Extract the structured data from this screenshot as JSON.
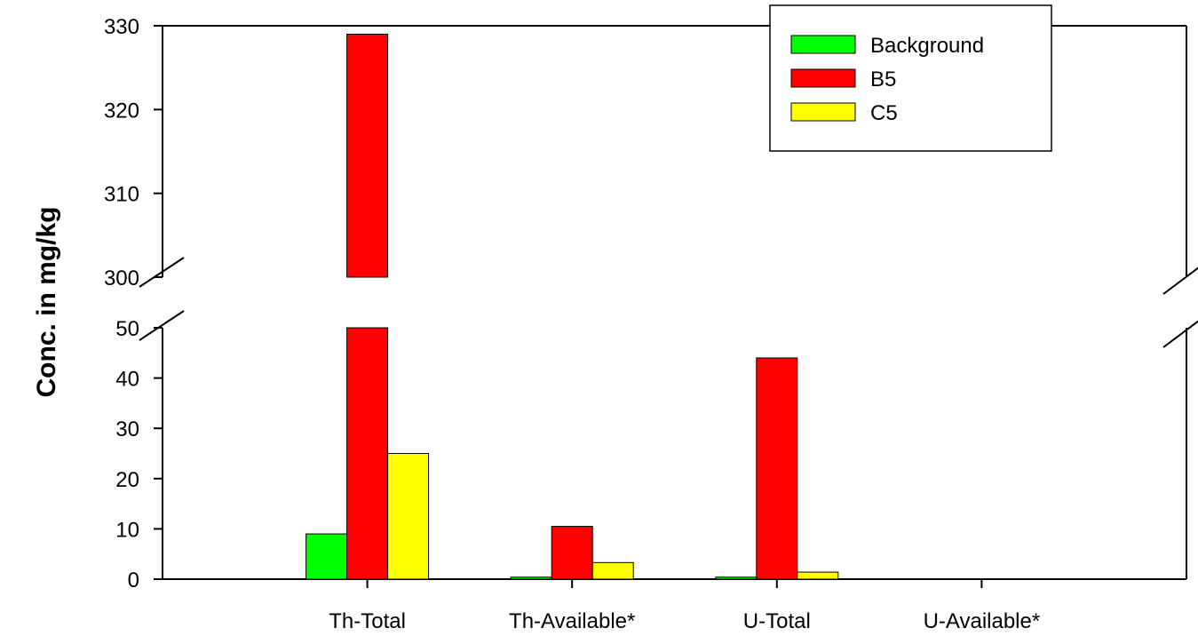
{
  "chart_data": {
    "type": "bar",
    "title": "",
    "xlabel": "",
    "ylabel": "Conc. in mg/kg",
    "categories": [
      "Th-Total",
      "Th-Available*",
      "U-Total",
      "U-Available*"
    ],
    "series": [
      {
        "name": "Background",
        "color": "#00ff00",
        "values": [
          9,
          0.4,
          0.4,
          0
        ]
      },
      {
        "name": "B5",
        "color": "#ff0000",
        "values": [
          329,
          10.5,
          44,
          0
        ]
      },
      {
        "name": "C5",
        "color": "#ffff00",
        "values": [
          25,
          3.3,
          1.4,
          0
        ]
      }
    ],
    "y_axis_break": {
      "lower_range": [
        0,
        50
      ],
      "upper_range": [
        300,
        330
      ],
      "lower_ticks": [
        0,
        10,
        20,
        30,
        40,
        50
      ],
      "upper_ticks": [
        300,
        310,
        320,
        330
      ]
    },
    "legend_position": "top-right",
    "grid": false
  }
}
